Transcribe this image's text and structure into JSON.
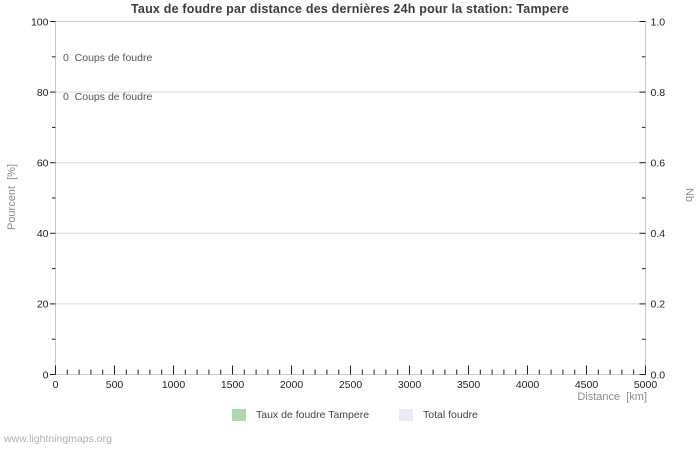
{
  "watermark": "www.lightningmaps.org",
  "chart_data": {
    "type": "bar",
    "title": "Taux de foudre par distance des dernières 24h pour la station: Tampere",
    "xlabel": "Distance  [km]",
    "ylabel_left": "Pourcent  [%]",
    "ylabel_right": "Nb",
    "x_axis": {
      "min": 0,
      "max": 5000,
      "major_step": 500,
      "minor_step": 100,
      "tick_labels": [
        "0",
        "500",
        "1000",
        "1500",
        "2000",
        "2500",
        "3000",
        "3500",
        "4000",
        "4500",
        "5000"
      ]
    },
    "y_axis_left": {
      "min": 0,
      "max": 100,
      "major_step": 20,
      "minor_step": 10,
      "tick_labels": [
        "0",
        "20",
        "40",
        "60",
        "80",
        "100"
      ]
    },
    "y_axis_right": {
      "min": 0,
      "max": 1,
      "major_step": 0.2,
      "minor_step": 0.1,
      "tick_labels": [
        "0.0",
        "0.2",
        "0.4",
        "0.6",
        "0.8",
        "1.0"
      ]
    },
    "grid": "horizontal-major-only",
    "legend_position": "bottom-center",
    "annotations": [
      "0  Coups de foudre",
      "0  Coups de foudre"
    ],
    "series": [
      {
        "name": "Taux de foudre Tampere",
        "color": "#aed8ae",
        "values": []
      },
      {
        "name": "Total foudre",
        "color": "#e9e9f8",
        "values": []
      }
    ]
  },
  "colors": {
    "plot_border": "#c9c9c9",
    "gridline": "#d9d9d9",
    "tick_mark": "#1f1f1f",
    "tick_label_text": "#1f1f1f"
  }
}
